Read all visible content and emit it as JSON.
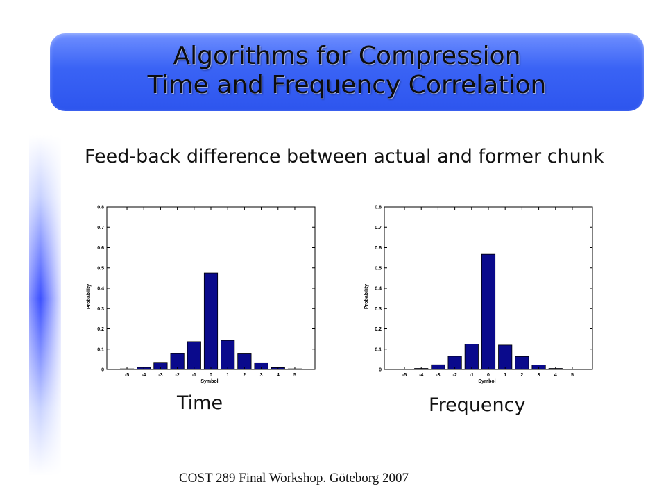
{
  "slide": {
    "title_line1": "Algorithms for Compression",
    "title_line2": "Time and Frequency Correlation",
    "subtitle": "Feed-back difference between actual and former chunk",
    "footer": "COST 289 Final Workshop. Göteborg 2007"
  },
  "chart_data": [
    {
      "type": "bar",
      "caption": "Time",
      "xlabel": "Symbol",
      "ylabel": "Probability",
      "categories": [
        -5,
        -4,
        -3,
        -2,
        -1,
        0,
        1,
        2,
        3,
        4,
        5
      ],
      "values": [
        0.003,
        0.01,
        0.035,
        0.078,
        0.137,
        0.475,
        0.143,
        0.077,
        0.033,
        0.009,
        0.003
      ],
      "ylim": [
        0,
        0.8
      ],
      "yticks": [
        0,
        0.1,
        0.2,
        0.3,
        0.4,
        0.5,
        0.6,
        0.7,
        0.8
      ],
      "xlim": [
        -6.2,
        6.2
      ],
      "bar_color": "#0a0a8c"
    },
    {
      "type": "bar",
      "caption": "Frequency",
      "xlabel": "Symbol",
      "ylabel": "Probability",
      "categories": [
        -5,
        -4,
        -3,
        -2,
        -1,
        0,
        1,
        2,
        3,
        4,
        5
      ],
      "values": [
        0.002,
        0.005,
        0.023,
        0.065,
        0.125,
        0.567,
        0.12,
        0.064,
        0.022,
        0.005,
        0.002
      ],
      "ylim": [
        0,
        0.8
      ],
      "yticks": [
        0,
        0.1,
        0.2,
        0.3,
        0.4,
        0.5,
        0.6,
        0.7,
        0.8
      ],
      "xlim": [
        -6.2,
        6.2
      ],
      "bar_color": "#0a0a8c"
    }
  ]
}
